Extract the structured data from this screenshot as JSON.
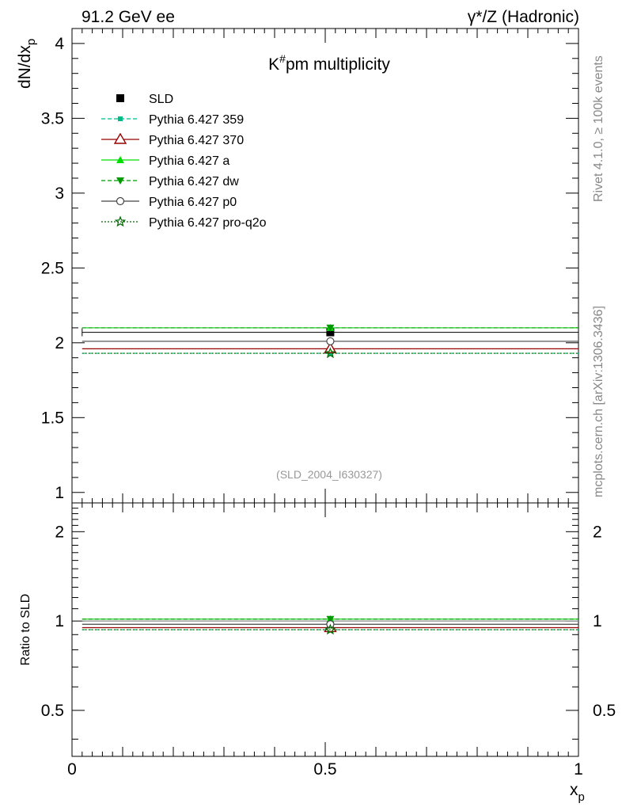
{
  "header": {
    "left": "91.2 GeV ee",
    "right": "γ*/Z (Hadronic)"
  },
  "side_labels": {
    "rivet": "Rivet 4.1.0, ≥ 100k events",
    "mcplots": "mcplots.cern.ch [arXiv:1306.3436]"
  },
  "watermark": "(SLD_2004_I630327)",
  "chart_data": [
    {
      "type": "scatter",
      "title": "K#pm  multiplicity",
      "title_main": "K",
      "title_sup": "#",
      "title_rest": "pm  multiplicity",
      "ylabel": "dN/dx",
      "ylabel_sub": "p",
      "xlim": [
        0,
        1
      ],
      "ylim": [
        0.93,
        4.1
      ],
      "y_ticks": [
        1,
        1.5,
        2,
        2.5,
        3,
        3.5,
        4
      ],
      "y_tick_labels": [
        "1",
        "1.5",
        "2",
        "2.5",
        "3",
        "3.5",
        "4"
      ],
      "x": [
        0.51
      ],
      "x_err": [
        0.49
      ],
      "series": [
        {
          "name": "SLD",
          "values": [
            2.07
          ],
          "color": "#000000",
          "marker": "square-filled",
          "line": "none"
        },
        {
          "name": "Pythia 6.427 359",
          "values": [
            1.93
          ],
          "color": "#00bb88",
          "marker": "square-small",
          "line": "dashed"
        },
        {
          "name": "Pythia 6.427 370",
          "values": [
            1.96
          ],
          "color": "#990000",
          "marker": "triangle-open",
          "line": "solid"
        },
        {
          "name": "Pythia 6.427 a",
          "values": [
            2.1
          ],
          "color": "#00dd00",
          "marker": "triangle-filled",
          "line": "solid"
        },
        {
          "name": "Pythia 6.427 dw",
          "values": [
            2.1
          ],
          "color": "#009900",
          "marker": "triangle-down-filled",
          "line": "dashed"
        },
        {
          "name": "Pythia 6.427 p0",
          "values": [
            2.01
          ],
          "color": "#444444",
          "marker": "circle-open",
          "line": "solid"
        },
        {
          "name": "Pythia 6.427 pro-q2o",
          "values": [
            1.93
          ],
          "color": "#006600",
          "marker": "star-open",
          "line": "dotted"
        }
      ]
    },
    {
      "type": "scatter",
      "ylabel": "Ratio to SLD",
      "xlabel": "x",
      "xlabel_sub": "p",
      "xlim": [
        0,
        1
      ],
      "ylim": [
        0.35,
        2.5
      ],
      "log_y": true,
      "x_ticks": [
        0,
        0.5,
        1
      ],
      "x_tick_labels": [
        "0",
        "0.5",
        "1"
      ],
      "y_ticks": [
        0.5,
        1,
        2
      ],
      "y_tick_labels": [
        "0.5",
        "1",
        "2"
      ],
      "x": [
        0.51
      ],
      "series": [
        {
          "name": "Pythia 6.427 359",
          "values": [
            0.935
          ]
        },
        {
          "name": "Pythia 6.427 370",
          "values": [
            0.95
          ]
        },
        {
          "name": "Pythia 6.427 a",
          "values": [
            1.015
          ]
        },
        {
          "name": "Pythia 6.427 dw",
          "values": [
            1.015
          ]
        },
        {
          "name": "Pythia 6.427 p0",
          "values": [
            0.975
          ]
        },
        {
          "name": "Pythia 6.427 pro-q2o",
          "values": [
            0.935
          ]
        }
      ],
      "reference_value": 1,
      "reference_color": "#888888"
    }
  ]
}
